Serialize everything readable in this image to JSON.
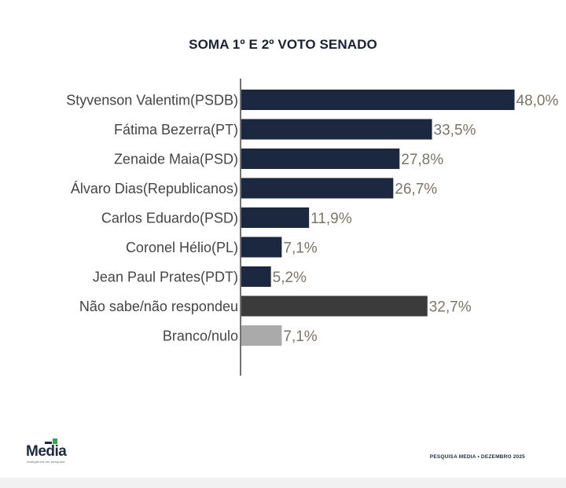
{
  "chart_data": {
    "type": "bar",
    "orientation": "horizontal",
    "title": "SOMA 1º E 2º VOTO SENADO",
    "xlim": [
      0,
      50
    ],
    "categories": [
      "Styvenson Valentim(PSDB)",
      "Fátima Bezerra(PT)",
      "Zenaide Maia(PSD)",
      "Álvaro Dias(Republicanos)",
      "Carlos Eduardo(PSD)",
      "Coronel Hélio(PL)",
      "Jean Paul Prates(PDT)",
      "Não sabe/não respondeu",
      "Branco/nulo"
    ],
    "values": [
      48.0,
      33.5,
      27.8,
      26.7,
      11.9,
      7.1,
      5.2,
      32.7,
      7.1
    ],
    "value_labels": [
      "48,0%",
      "33,5%",
      "27,8%",
      "26,7%",
      "11,9%",
      "7,1%",
      "5,2%",
      "32,7%",
      "7,1%"
    ],
    "bar_colors": [
      "#1c2740",
      "#1c2740",
      "#1c2740",
      "#1c2740",
      "#1c2740",
      "#1c2740",
      "#1c2740",
      "#3b3b3b",
      "#aaaaaa"
    ],
    "label_color": "#444444",
    "value_color": "#7d7469",
    "axis_color": "#444444"
  },
  "logo": {
    "wordmark": "Media",
    "tagline": "inteligência em pesquisa",
    "accent_color": "#2fa84f"
  },
  "footer": {
    "source": "PESQUISA MEDIA • DEZEMBRO 2025"
  }
}
